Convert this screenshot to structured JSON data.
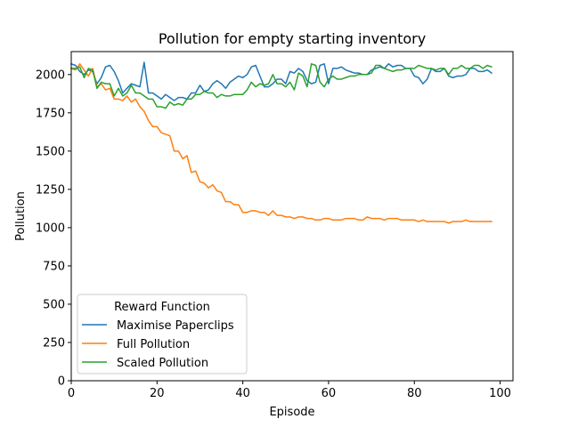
{
  "chart_data": {
    "type": "line",
    "title": "Pollution for empty starting inventory",
    "xlabel": "Episode",
    "ylabel": "Pollution",
    "xlim": [
      0,
      103
    ],
    "ylim": [
      0,
      2150
    ],
    "xticks": [
      0,
      20,
      40,
      60,
      80,
      100
    ],
    "yticks": [
      0,
      250,
      500,
      750,
      1000,
      1250,
      1500,
      1750,
      2000
    ],
    "grid": false,
    "legend": {
      "title": "Reward Function",
      "placement": "lower-left"
    },
    "series": [
      {
        "name": "Maximise Paperclips",
        "color": "#1f77b4",
        "x": [
          0,
          1,
          2,
          3,
          4,
          5,
          6,
          7,
          8,
          9,
          10,
          11,
          12,
          13,
          14,
          15,
          16,
          17,
          18,
          19,
          20,
          21,
          22,
          23,
          24,
          25,
          26,
          27,
          28,
          29,
          30,
          31,
          32,
          33,
          34,
          35,
          36,
          37,
          38,
          39,
          40,
          41,
          42,
          43,
          44,
          45,
          46,
          47,
          48,
          49,
          50,
          51,
          52,
          53,
          54,
          55,
          56,
          57,
          58,
          59,
          60,
          61,
          62,
          63,
          64,
          65,
          66,
          67,
          68,
          69,
          70,
          71,
          72,
          73,
          74,
          75,
          76,
          77,
          78,
          79,
          80,
          81,
          82,
          83,
          84,
          85,
          86,
          87,
          88,
          89,
          90,
          91,
          92,
          93,
          94,
          95,
          96,
          97,
          98
        ],
        "y": [
          2070,
          2060,
          2020,
          2000,
          2030,
          2020,
          1940,
          1980,
          2050,
          2060,
          2020,
          1960,
          1880,
          1910,
          1940,
          1930,
          1920,
          2080,
          1880,
          1880,
          1860,
          1840,
          1870,
          1850,
          1830,
          1850,
          1850,
          1840,
          1880,
          1880,
          1930,
          1890,
          1900,
          1940,
          1960,
          1940,
          1910,
          1950,
          1970,
          1990,
          1980,
          2000,
          2050,
          2060,
          1990,
          1920,
          1920,
          1940,
          1970,
          1970,
          1940,
          2020,
          2010,
          2040,
          2020,
          1960,
          1940,
          1950,
          2060,
          2070,
          1940,
          2040,
          2040,
          2050,
          2030,
          2020,
          2010,
          2010,
          2000,
          2000,
          2030,
          2040,
          2050,
          2040,
          2070,
          2050,
          2060,
          2060,
          2040,
          2040,
          1990,
          1980,
          1940,
          1970,
          2040,
          2020,
          2020,
          2040,
          1990,
          1980,
          1990,
          1990,
          2000,
          2040,
          2040,
          2020,
          2020,
          2030,
          2010
        ]
      },
      {
        "name": "Full Pollution",
        "color": "#ff7f0e",
        "x": [
          0,
          1,
          2,
          3,
          4,
          5,
          6,
          7,
          8,
          9,
          10,
          11,
          12,
          13,
          14,
          15,
          16,
          17,
          18,
          19,
          20,
          21,
          22,
          23,
          24,
          25,
          26,
          27,
          28,
          29,
          30,
          31,
          32,
          33,
          34,
          35,
          36,
          37,
          38,
          39,
          40,
          41,
          42,
          43,
          44,
          45,
          46,
          47,
          48,
          49,
          50,
          51,
          52,
          53,
          54,
          55,
          56,
          57,
          58,
          59,
          60,
          61,
          62,
          63,
          64,
          65,
          66,
          67,
          68,
          69,
          70,
          71,
          72,
          73,
          74,
          75,
          76,
          77,
          78,
          79,
          80,
          81,
          82,
          83,
          84,
          85,
          86,
          87,
          88,
          89,
          90,
          91,
          92,
          93,
          94,
          95,
          96,
          97,
          98
        ],
        "y": [
          2040,
          2030,
          2070,
          2030,
          1990,
          2040,
          1920,
          1940,
          1900,
          1910,
          1840,
          1840,
          1830,
          1860,
          1820,
          1840,
          1790,
          1760,
          1700,
          1660,
          1660,
          1620,
          1610,
          1600,
          1500,
          1500,
          1450,
          1470,
          1360,
          1370,
          1300,
          1290,
          1260,
          1280,
          1240,
          1230,
          1170,
          1170,
          1150,
          1150,
          1100,
          1100,
          1110,
          1110,
          1100,
          1100,
          1080,
          1110,
          1080,
          1080,
          1070,
          1070,
          1060,
          1070,
          1070,
          1060,
          1060,
          1050,
          1050,
          1060,
          1060,
          1050,
          1050,
          1050,
          1060,
          1060,
          1060,
          1050,
          1050,
          1070,
          1060,
          1060,
          1060,
          1050,
          1060,
          1060,
          1060,
          1050,
          1050,
          1050,
          1050,
          1040,
          1050,
          1040,
          1040,
          1040,
          1040,
          1040,
          1030,
          1040,
          1040,
          1040,
          1050,
          1040,
          1040,
          1040,
          1040,
          1040,
          1040
        ]
      },
      {
        "name": "Scaled Pollution",
        "color": "#2ca02c",
        "x": [
          0,
          1,
          2,
          3,
          4,
          5,
          6,
          7,
          8,
          9,
          10,
          11,
          12,
          13,
          14,
          15,
          16,
          17,
          18,
          19,
          20,
          21,
          22,
          23,
          24,
          25,
          26,
          27,
          28,
          29,
          30,
          31,
          32,
          33,
          34,
          35,
          36,
          37,
          38,
          39,
          40,
          41,
          42,
          43,
          44,
          45,
          46,
          47,
          48,
          49,
          50,
          51,
          52,
          53,
          54,
          55,
          56,
          57,
          58,
          59,
          60,
          61,
          62,
          63,
          64,
          65,
          66,
          67,
          68,
          69,
          70,
          71,
          72,
          73,
          74,
          75,
          76,
          77,
          78,
          79,
          80,
          81,
          82,
          83,
          84,
          85,
          86,
          87,
          88,
          89,
          90,
          91,
          92,
          93,
          94,
          95,
          96,
          97,
          98
        ],
        "y": [
          2040,
          2040,
          2050,
          1980,
          2040,
          2030,
          1910,
          1950,
          1940,
          1940,
          1860,
          1910,
          1860,
          1880,
          1930,
          1880,
          1880,
          1860,
          1840,
          1840,
          1790,
          1790,
          1780,
          1820,
          1800,
          1810,
          1800,
          1840,
          1840,
          1870,
          1870,
          1890,
          1880,
          1880,
          1850,
          1870,
          1860,
          1860,
          1870,
          1870,
          1870,
          1900,
          1950,
          1920,
          1940,
          1930,
          1940,
          2000,
          1940,
          1940,
          1920,
          1950,
          1900,
          2010,
          1990,
          1920,
          2070,
          2060,
          1950,
          1920,
          1970,
          1990,
          1970,
          1970,
          1980,
          1990,
          1990,
          2000,
          2000,
          2000,
          2010,
          2060,
          2060,
          2040,
          2030,
          2020,
          2030,
          2030,
          2040,
          2040,
          2040,
          2060,
          2050,
          2040,
          2040,
          2030,
          2040,
          2040,
          2000,
          2040,
          2040,
          2060,
          2040,
          2040,
          2060,
          2060,
          2040,
          2060,
          2050
        ]
      }
    ]
  }
}
